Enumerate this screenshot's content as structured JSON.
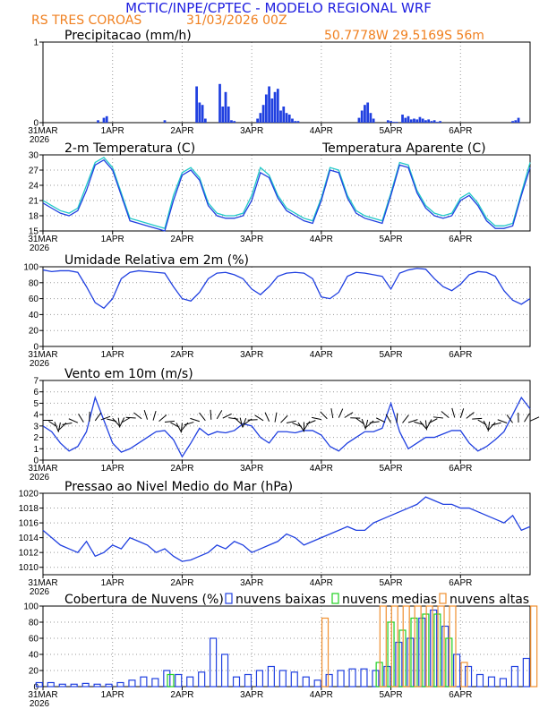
{
  "header": {
    "title": "MCTIC/INPE/CPTEC - MODELO REGIONAL WRF",
    "location": "RS TRES COROAS",
    "run": "31/03/2026 00Z",
    "coords": "50.7778W  29.5169S  56m"
  },
  "colors": {
    "blue": "#2040e0",
    "cyan": "#20c8c8",
    "green": "#20d020",
    "orange": "#f09030",
    "title_blue": "#2020e0",
    "header_orange": "#f08020"
  },
  "x_axis": {
    "ticks": [
      {
        "label": "31MAR",
        "sub": "2026",
        "hour": 0
      },
      {
        "label": "1APR",
        "sub": "",
        "hour": 24
      },
      {
        "label": "2APR",
        "sub": "",
        "hour": 48
      },
      {
        "label": "3APR",
        "sub": "",
        "hour": 72
      },
      {
        "label": "4APR",
        "sub": "",
        "hour": 96
      },
      {
        "label": "5APR",
        "sub": "",
        "hour": 120
      },
      {
        "label": "6APR",
        "sub": "",
        "hour": 144
      }
    ],
    "max_hour": 168
  },
  "chart_data": [
    {
      "id": "precip",
      "type": "bar",
      "title": "Precipitacao (mm/h)",
      "ylim": [
        0,
        1
      ],
      "yticks": [
        0,
        1
      ],
      "x": [
        19,
        21,
        22,
        42,
        53,
        54,
        55,
        56,
        61,
        62,
        63,
        64,
        65,
        66,
        74,
        75,
        76,
        77,
        78,
        79,
        80,
        81,
        82,
        83,
        84,
        85,
        86,
        87,
        88,
        109,
        110,
        111,
        112,
        113,
        114,
        119,
        120,
        121,
        122,
        124,
        125,
        126,
        127,
        128,
        129,
        130,
        131,
        132,
        133,
        134,
        135,
        136,
        137,
        162,
        163,
        164
      ],
      "values": [
        0.03,
        0.06,
        0.08,
        0.03,
        0.45,
        0.25,
        0.22,
        0.05,
        0.48,
        0.2,
        0.38,
        0.2,
        0.03,
        0.02,
        0.05,
        0.12,
        0.22,
        0.35,
        0.45,
        0.3,
        0.38,
        0.42,
        0.15,
        0.2,
        0.12,
        0.1,
        0.05,
        0.02,
        0.02,
        0.06,
        0.15,
        0.22,
        0.25,
        0.12,
        0.05,
        0.03,
        0.02,
        0.01,
        0.01,
        0.1,
        0.06,
        0.08,
        0.04,
        0.05,
        0.04,
        0.07,
        0.05,
        0.03,
        0.04,
        0.02,
        0.03,
        0.01,
        0.02,
        0.02,
        0.03,
        0.06
      ]
    },
    {
      "id": "temp",
      "type": "line",
      "title": "2-m Temperatura (C)",
      "legend2": "Temperatura Aparente (C)",
      "ylim": [
        15,
        30
      ],
      "yticks": [
        15,
        18,
        21,
        24,
        27,
        30
      ],
      "x": [
        0,
        3,
        6,
        9,
        12,
        15,
        18,
        21,
        24,
        27,
        30,
        33,
        36,
        39,
        42,
        45,
        48,
        51,
        54,
        57,
        60,
        63,
        66,
        69,
        72,
        75,
        78,
        81,
        84,
        87,
        90,
        93,
        96,
        99,
        102,
        105,
        108,
        111,
        114,
        117,
        120,
        123,
        126,
        129,
        132,
        135,
        138,
        141,
        144,
        147,
        150,
        153,
        156,
        159,
        162,
        165,
        168
      ],
      "series": [
        {
          "name": "2-m Temperatura (C)",
          "values": [
            20.5,
            19.5,
            18.5,
            18,
            19,
            23,
            28,
            29,
            27,
            22,
            17,
            16.5,
            16,
            15.5,
            15,
            21,
            26,
            27,
            25,
            20,
            18,
            17.5,
            17.5,
            18,
            21,
            26.5,
            25.5,
            21.5,
            19,
            18,
            17,
            16.5,
            21,
            27,
            26.5,
            21.5,
            18.5,
            17.5,
            17,
            16.5,
            22,
            28,
            27.5,
            22.5,
            19.5,
            18,
            17.5,
            18,
            21,
            22,
            20,
            17,
            15.5,
            15.5,
            16,
            22,
            27.5
          ]
        },
        {
          "name": "Temperatura Aparente (C)",
          "values": [
            21,
            20,
            19,
            18.5,
            19.5,
            24,
            28.5,
            29.5,
            27.5,
            22.5,
            17.5,
            17,
            16.5,
            16,
            15.5,
            22,
            26.5,
            27.5,
            25.5,
            20.5,
            18.5,
            18,
            18,
            18.5,
            22,
            27.5,
            26,
            22,
            19.5,
            18.5,
            17.5,
            17,
            21.5,
            27.5,
            27,
            22,
            19,
            18,
            17.5,
            17,
            22.5,
            28.5,
            28,
            23,
            20,
            18.5,
            18,
            18.5,
            21.5,
            22.5,
            20.5,
            17.5,
            16,
            16,
            16.5,
            22.5,
            28.5
          ]
        }
      ]
    },
    {
      "id": "rh",
      "type": "line",
      "title": "Umidade Relativa em 2m (%)",
      "ylim": [
        0,
        100
      ],
      "yticks": [
        0,
        20,
        40,
        60,
        80,
        100
      ],
      "x": [
        0,
        3,
        6,
        9,
        12,
        15,
        18,
        21,
        24,
        27,
        30,
        33,
        36,
        39,
        42,
        45,
        48,
        51,
        54,
        57,
        60,
        63,
        66,
        69,
        72,
        75,
        78,
        81,
        84,
        87,
        90,
        93,
        96,
        99,
        102,
        105,
        108,
        111,
        114,
        117,
        120,
        123,
        126,
        129,
        132,
        135,
        138,
        141,
        144,
        147,
        150,
        153,
        156,
        159,
        162,
        165,
        168
      ],
      "values": [
        96,
        94,
        95,
        95,
        93,
        75,
        55,
        48,
        60,
        85,
        93,
        95,
        94,
        93,
        92,
        75,
        60,
        57,
        68,
        85,
        92,
        93,
        90,
        85,
        72,
        65,
        75,
        88,
        92,
        93,
        92,
        85,
        62,
        60,
        68,
        88,
        93,
        92,
        90,
        88,
        72,
        92,
        96,
        98,
        97,
        85,
        75,
        70,
        78,
        90,
        94,
        93,
        88,
        70,
        58,
        53,
        60
      ]
    },
    {
      "id": "wind",
      "type": "line",
      "title": "Vento em 10m (m/s)",
      "ylim": [
        0,
        7
      ],
      "yticks": [
        0,
        1,
        2,
        3,
        4,
        5,
        6,
        7
      ],
      "x": [
        0,
        3,
        6,
        9,
        12,
        15,
        18,
        21,
        24,
        27,
        30,
        33,
        36,
        39,
        42,
        45,
        48,
        51,
        54,
        57,
        60,
        63,
        66,
        69,
        72,
        75,
        78,
        81,
        84,
        87,
        90,
        93,
        96,
        99,
        102,
        105,
        108,
        111,
        114,
        117,
        120,
        123,
        126,
        129,
        132,
        135,
        138,
        141,
        144,
        147,
        150,
        153,
        156,
        159,
        162,
        165,
        168
      ],
      "values": [
        3,
        2.5,
        1.5,
        0.8,
        1.2,
        2.5,
        5.5,
        3.5,
        1.5,
        0.7,
        1,
        1.5,
        2,
        2.5,
        2.6,
        1.8,
        0.3,
        1.5,
        2.8,
        2.2,
        2.5,
        2.4,
        2.6,
        3.2,
        3,
        2,
        1.5,
        2.5,
        2.5,
        2.4,
        2.6,
        2.6,
        2.2,
        1.2,
        0.8,
        1.5,
        2,
        2.5,
        2.5,
        2.8,
        5,
        2.5,
        1,
        1.5,
        2,
        2,
        2.3,
        2.6,
        2.6,
        1.5,
        0.8,
        1.2,
        1.8,
        2.5,
        4,
        5.5,
        4.5
      ]
    },
    {
      "id": "slp",
      "type": "line",
      "title": "Pressao ao Nivel Medio do Mar (hPa)",
      "ylim": [
        1009,
        1020
      ],
      "yticks": [
        1010,
        1012,
        1014,
        1016,
        1018,
        1020
      ],
      "x": [
        0,
        3,
        6,
        9,
        12,
        15,
        18,
        21,
        24,
        27,
        30,
        33,
        36,
        39,
        42,
        45,
        48,
        51,
        54,
        57,
        60,
        63,
        66,
        69,
        72,
        75,
        78,
        81,
        84,
        87,
        90,
        93,
        96,
        99,
        102,
        105,
        108,
        111,
        114,
        117,
        120,
        123,
        126,
        129,
        132,
        135,
        138,
        141,
        144,
        147,
        150,
        153,
        156,
        159,
        162,
        165,
        168
      ],
      "values": [
        1015,
        1014,
        1013,
        1012.5,
        1012,
        1013.5,
        1011.5,
        1012,
        1013,
        1012.5,
        1014,
        1013.5,
        1013,
        1012,
        1012.5,
        1011.5,
        1010.8,
        1011,
        1011.5,
        1012,
        1013,
        1012.5,
        1013.5,
        1013,
        1012,
        1012.5,
        1013,
        1013.5,
        1014.5,
        1014,
        1013,
        1013.5,
        1014,
        1014.5,
        1015,
        1015.5,
        1015,
        1015,
        1016,
        1016.5,
        1017,
        1017.5,
        1018,
        1018.5,
        1019.5,
        1019,
        1018.5,
        1018.5,
        1018,
        1018,
        1017.5,
        1017,
        1016.5,
        1016,
        1017,
        1015,
        1015.5
      ]
    },
    {
      "id": "clouds",
      "type": "bar",
      "title": "Cobertura de Nuvens (%)",
      "ylim": [
        0,
        100
      ],
      "yticks": [
        0,
        20,
        40,
        60,
        80,
        100
      ],
      "legend": [
        "nuvens baixas",
        "nuvens medias",
        "nuvens altas"
      ],
      "x": [
        0,
        4,
        8,
        12,
        16,
        20,
        24,
        28,
        32,
        36,
        40,
        44,
        48,
        52,
        56,
        60,
        64,
        68,
        72,
        76,
        80,
        84,
        88,
        92,
        96,
        100,
        104,
        108,
        112,
        116,
        120,
        124,
        128,
        132,
        136,
        140,
        144,
        148,
        152,
        156,
        160,
        164,
        168
      ],
      "series": [
        {
          "name": "nuvens baixas",
          "values": [
            5,
            5,
            3,
            3,
            4,
            3,
            3,
            5,
            8,
            12,
            10,
            20,
            15,
            12,
            18,
            60,
            40,
            12,
            15,
            20,
            25,
            20,
            18,
            12,
            8,
            15,
            20,
            22,
            22,
            20,
            25,
            55,
            60,
            85,
            95,
            75,
            40,
            25,
            15,
            12,
            10,
            25,
            35
          ]
        },
        {
          "name": "nuvens medias",
          "values": [
            0,
            0,
            0,
            0,
            0,
            0,
            0,
            0,
            0,
            0,
            0,
            15,
            0,
            0,
            0,
            0,
            0,
            0,
            0,
            0,
            0,
            0,
            0,
            0,
            0,
            0,
            0,
            0,
            0,
            30,
            80,
            70,
            85,
            90,
            90,
            60,
            0,
            0,
            0,
            0,
            0,
            0,
            0
          ]
        },
        {
          "name": "nuvens altas",
          "values": [
            0,
            0,
            0,
            0,
            0,
            0,
            0,
            0,
            0,
            0,
            0,
            0,
            0,
            0,
            0,
            0,
            0,
            0,
            0,
            0,
            0,
            0,
            0,
            0,
            85,
            0,
            0,
            0,
            0,
            100,
            100,
            100,
            100,
            100,
            100,
            100,
            30,
            0,
            0,
            0,
            0,
            0,
            100
          ]
        }
      ]
    }
  ]
}
